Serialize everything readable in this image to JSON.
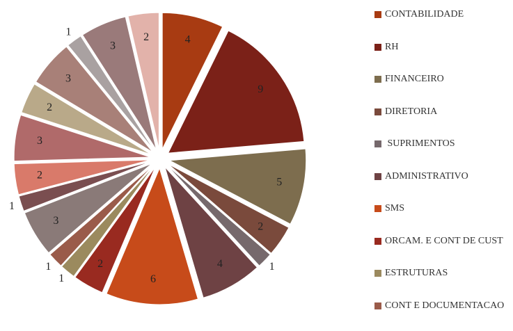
{
  "chart_data": {
    "type": "pie",
    "categories": [
      "CONTABILIDADE",
      "RH",
      "FINANCEIRO",
      "DIRETORIA",
      " SUPRIMENTOS",
      "ADMINISTRATIVO",
      "SMS",
      "ORCAM. E CONT DE CUST",
      "ESTRUTURAS",
      "CONT E DOCUMENTACAO",
      null,
      null,
      null,
      null,
      null,
      null,
      null,
      null,
      null
    ],
    "values": [
      4,
      9,
      5,
      2,
      1,
      4,
      6,
      2,
      1,
      1,
      3,
      1,
      2,
      3,
      2,
      3,
      1,
      3,
      2
    ],
    "colors": [
      "#a83b12",
      "#7b2118",
      "#7d6d4e",
      "#7a4a3c",
      "#76696c",
      "#6e4244",
      "#c74b1a",
      "#992a20",
      "#9b8a5e",
      "#9a5b4a",
      "#8a7a78",
      "#7a4e50",
      "#d97a6a",
      "#b06a6a",
      "#b9a989",
      "#a88078",
      "#a9a1a1",
      "#9a7a7a",
      "#e2b2aa"
    ]
  }
}
